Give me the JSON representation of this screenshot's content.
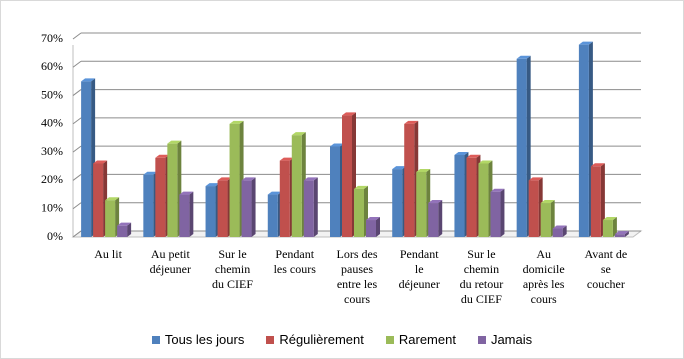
{
  "chart_data": {
    "type": "bar3d",
    "categories": [
      "Au lit",
      "Au petit\ndéjeuner",
      "Sur le\nchemin\ndu CIEF",
      "Pendant\nles cours",
      "Lors des\npauses\nentre les\ncours",
      "Pendant\nle\ndéjeuner",
      "Sur le\nchemin\ndu retour\ndu CIEF",
      "Au\ndomicile\naprès les\ncours",
      "Avant de\nse\ncoucher"
    ],
    "series": [
      {
        "name": "Tous les jours",
        "color": "#4f81bd",
        "values": [
          55,
          22,
          18,
          15,
          32,
          24,
          29,
          63,
          68
        ]
      },
      {
        "name": "Régulièrement",
        "color": "#c0504d",
        "values": [
          26,
          28,
          20,
          27,
          43,
          40,
          28,
          20,
          25
        ]
      },
      {
        "name": "Rarement",
        "color": "#9bbb59",
        "values": [
          13,
          33,
          40,
          36,
          17,
          23,
          26,
          12,
          6
        ]
      },
      {
        "name": "Jamais",
        "color": "#8064a2",
        "values": [
          4,
          15,
          20,
          20,
          6,
          12,
          16,
          3,
          1
        ]
      }
    ],
    "ylim": [
      0,
      70
    ],
    "yticks": [
      {
        "value": 0,
        "label": "0%"
      },
      {
        "value": 10,
        "label": "10%"
      },
      {
        "value": 20,
        "label": "20%"
      },
      {
        "value": 30,
        "label": "30%"
      },
      {
        "value": 40,
        "label": "40%"
      },
      {
        "value": 50,
        "label": "50%"
      },
      {
        "value": 60,
        "label": "60%"
      },
      {
        "value": 70,
        "label": "70%"
      }
    ],
    "grid": true,
    "legend": "bottom"
  }
}
